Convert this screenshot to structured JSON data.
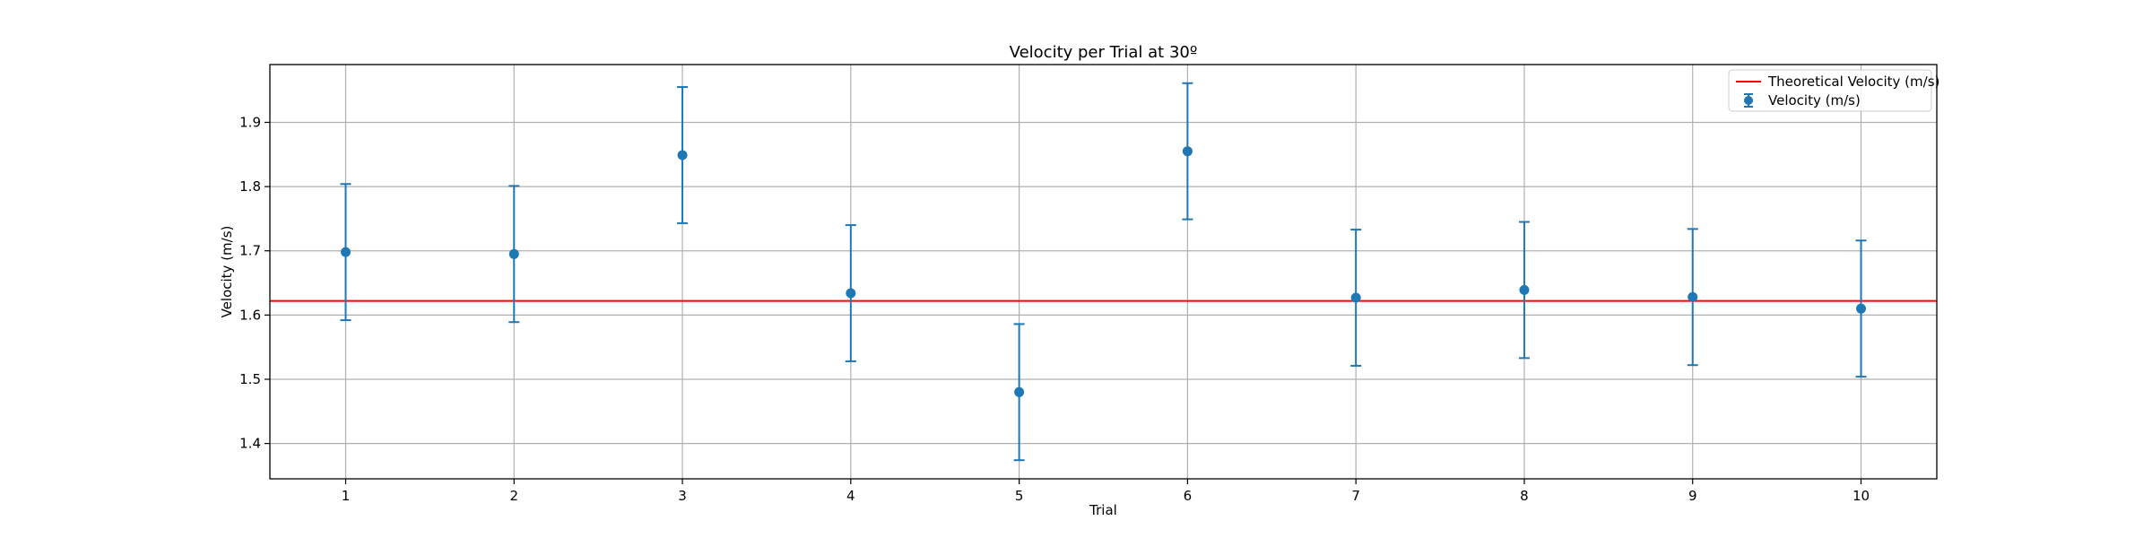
{
  "chart_data": {
    "type": "scatter",
    "title": "Velocity per Trial at 30º",
    "xlabel": "Trial",
    "ylabel": "Velocity (m/s)",
    "x": [
      1,
      2,
      3,
      4,
      5,
      6,
      7,
      8,
      9,
      10
    ],
    "xlim": [
      0.55,
      10.45
    ],
    "ylim": [
      1.345,
      1.99
    ],
    "yticks": [
      1.4,
      1.5,
      1.6,
      1.7,
      1.8,
      1.9
    ],
    "grid": true,
    "legend_position": "top-right",
    "series": [
      {
        "name": "Velocity (m/s)",
        "kind": "errorbar",
        "color": "#1f77b4",
        "values": [
          1.698,
          1.695,
          1.849,
          1.634,
          1.48,
          1.855,
          1.627,
          1.639,
          1.628,
          1.61
        ],
        "yerr": [
          0.106,
          0.106,
          0.106,
          0.106,
          0.106,
          0.106,
          0.106,
          0.106,
          0.106,
          0.106
        ]
      },
      {
        "name": "Theoretical Velocity (m/s)",
        "kind": "hline",
        "color": "#ff0000",
        "value": 1.622
      }
    ]
  }
}
